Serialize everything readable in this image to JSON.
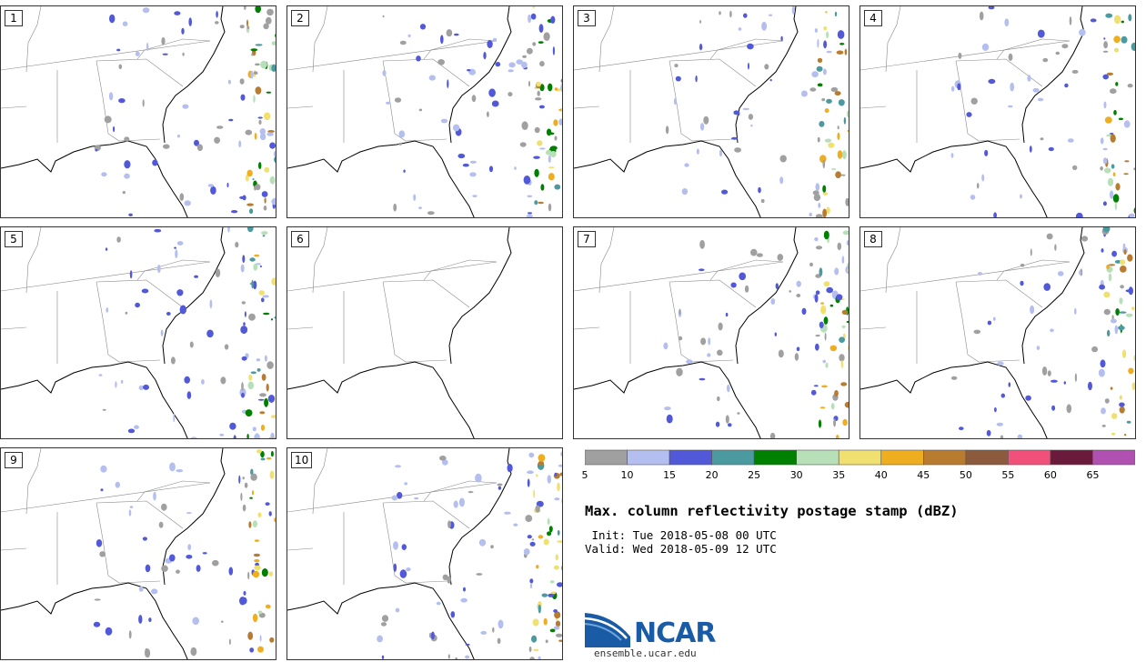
{
  "panels": [
    {
      "label": "1",
      "density": 0.9
    },
    {
      "label": "2",
      "density": 0.9
    },
    {
      "label": "3",
      "density": 0.75
    },
    {
      "label": "4",
      "density": 0.7
    },
    {
      "label": "5",
      "density": 0.8
    },
    {
      "label": "6",
      "density": 0.0
    },
    {
      "label": "7",
      "density": 0.85
    },
    {
      "label": "8",
      "density": 0.75
    },
    {
      "label": "9",
      "density": 0.7
    },
    {
      "label": "10",
      "density": 0.95
    }
  ],
  "colorbar": {
    "colors": [
      "#a0a0a0",
      "#b4bff0",
      "#5259d8",
      "#4a9aa0",
      "#008000",
      "#b8e0b8",
      "#f0e070",
      "#eeae20",
      "#b87c30",
      "#8c5a3c",
      "#f0507a",
      "#6a1a3a",
      "#b050b0"
    ],
    "labels": [
      "5",
      "10",
      "15",
      "20",
      "25",
      "30",
      "35",
      "40",
      "45",
      "50",
      "55",
      "60",
      "65"
    ]
  },
  "title": "Max. column reflectivity postage stamp (dBZ)",
  "init_text": " Init: Tue 2018-05-08 00 UTC",
  "valid_text": "Valid: Wed 2018-05-09 12 UTC",
  "logo": {
    "text": "NCAR",
    "url": "ensemble.ucar.edu",
    "icon": "ncar-logo-icon"
  }
}
